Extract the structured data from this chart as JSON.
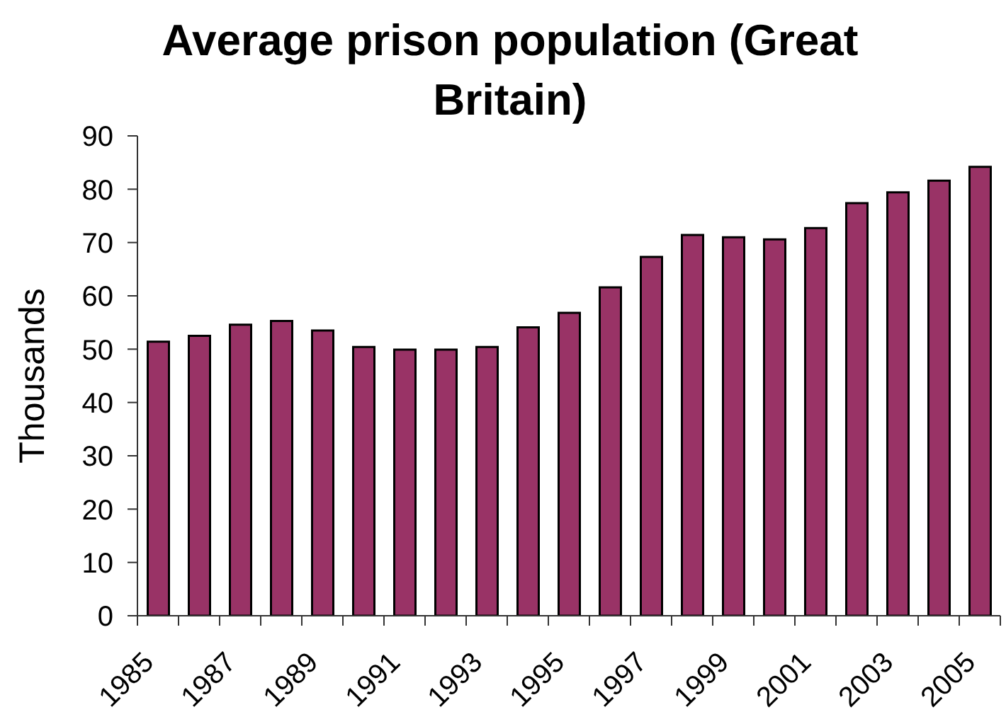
{
  "chart_data": {
    "type": "bar",
    "title": "Average prison population (Great Britain)",
    "ylabel": "Thousands",
    "categories": [
      "1985",
      null,
      "1987",
      null,
      "1989",
      null,
      "1991",
      null,
      "1993",
      null,
      "1995",
      null,
      "1997",
      null,
      "1999",
      null,
      "2001",
      null,
      "2003",
      null,
      "2005"
    ],
    "values": [
      51.4,
      52.5,
      54.6,
      55.3,
      53.5,
      50.4,
      49.9,
      49.9,
      50.4,
      54.1,
      56.8,
      61.6,
      67.3,
      71.4,
      71.0,
      70.6,
      72.7,
      77.4,
      79.4,
      81.6,
      84.2
    ],
    "color": "#993366",
    "ylim": [
      0,
      90
    ],
    "yticks": [
      0,
      10,
      20,
      30,
      40,
      50,
      60,
      70,
      80,
      90
    ]
  }
}
